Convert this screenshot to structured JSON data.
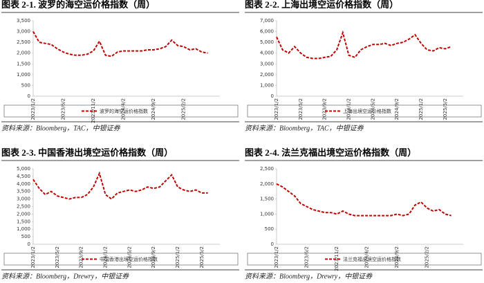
{
  "chart_data": [
    {
      "type": "line",
      "title": "图表 2-1. 波罗的海空运价格指数（周）",
      "source": "资料来源：Bloomberg，TAC，中银证券",
      "categories": [
        "2023/1/2",
        null,
        null,
        null,
        null,
        "2023/6/2",
        null,
        null,
        null,
        null,
        "2023/11/2",
        null,
        null,
        null,
        null,
        "2024/4/2",
        null,
        null,
        null,
        null,
        "2024/9/2",
        null,
        null,
        null,
        null,
        "2025/2/2",
        null,
        null,
        null,
        null
      ],
      "series": [
        {
          "name": "波罗的海空运价格指数",
          "color": "#c00000",
          "values": [
            3000,
            2500,
            2450,
            2400,
            2200,
            2050,
            1950,
            1900,
            1900,
            1950,
            2100,
            2550,
            1900,
            1850,
            2050,
            2100,
            2100,
            2100,
            2100,
            2150,
            2150,
            2200,
            2300,
            2600,
            2350,
            2300,
            2150,
            2200,
            2050,
            2000
          ]
        }
      ],
      "ylim": [
        0,
        3500
      ],
      "yticks": [
        0,
        500,
        {
          "value": 1000,
          "label": "1,000"
        },
        {
          "value": 1500,
          "label": "1,500"
        },
        {
          "value": 2000,
          "label": "2,000"
        },
        {
          "value": 2500,
          "label": "2,500"
        },
        {
          "value": 3000,
          "label": "3,000"
        },
        {
          "value": 3500,
          "label": "3,500"
        }
      ]
    },
    {
      "type": "line",
      "title": "图表 2-2. 上海出境空运价格指数（周）",
      "source": "资料来源：Bloomberg，TAC，中银证券",
      "categories": [
        "2023/1/2",
        null,
        null,
        null,
        "2023/5/2",
        null,
        null,
        null,
        "2023/9/2",
        null,
        null,
        null,
        "2024/1/2",
        null,
        null,
        null,
        "2024/5/2",
        null,
        null,
        null,
        "2024/9/2",
        null,
        null,
        null,
        "2025/1/2",
        null,
        null,
        null,
        "2025/5/2",
        null
      ],
      "series": [
        {
          "name": "上海出境空运价格指数",
          "color": "#c00000",
          "values": [
            5500,
            4300,
            4000,
            4600,
            4000,
            3600,
            3500,
            3500,
            3600,
            3700,
            4300,
            5900,
            3800,
            3600,
            4300,
            4600,
            4800,
            4800,
            4900,
            4700,
            4900,
            5000,
            5300,
            5700,
            4900,
            4300,
            4200,
            4500,
            4400,
            4600
          ]
        }
      ],
      "ylim": [
        0,
        7000
      ],
      "yticks": [
        0,
        {
          "value": 1000,
          "label": "1,000"
        },
        {
          "value": 2000,
          "label": "2,000"
        },
        {
          "value": 3000,
          "label": "3,000"
        },
        {
          "value": 4000,
          "label": "4,000"
        },
        {
          "value": 5000,
          "label": "5,000"
        },
        {
          "value": 6000,
          "label": "6,000"
        },
        {
          "value": 7000,
          "label": "7,000"
        }
      ]
    },
    {
      "type": "line",
      "title": "图表 2-3. 中国香港出境空运价格指数（周）",
      "source": "资料来源：Bloomberg，Drewry，中银证券",
      "categories": [
        "2023/1/2",
        null,
        null,
        null,
        "2023/5/2",
        null,
        null,
        null,
        "2023/9/2",
        null,
        null,
        null,
        "2024/1/2",
        null,
        null,
        null,
        "2024/5/2",
        null,
        null,
        null,
        "2024/9/2",
        null,
        null,
        null,
        "2025/1/2",
        null,
        null,
        null,
        "2025/5/2",
        null
      ],
      "series": [
        {
          "name": "中国香港出境空运价格指数",
          "color": "#c00000",
          "values": [
            4300,
            3700,
            3300,
            3500,
            3200,
            3100,
            3000,
            3100,
            3100,
            3300,
            3800,
            4700,
            3300,
            3000,
            3400,
            3500,
            3600,
            3500,
            3600,
            3800,
            3700,
            3800,
            4200,
            4600,
            3800,
            3600,
            3500,
            3600,
            3400,
            3400
          ]
        }
      ],
      "ylim": [
        0,
        5000
      ],
      "yticks": [
        0,
        500,
        {
          "value": 1000,
          "label": "1,000"
        },
        {
          "value": 1500,
          "label": "1,500"
        },
        {
          "value": 2000,
          "label": "2,000"
        },
        {
          "value": 2500,
          "label": "2,500"
        },
        {
          "value": 3000,
          "label": "3,000"
        },
        {
          "value": 3500,
          "label": "3,500"
        },
        {
          "value": 4000,
          "label": "4,000"
        },
        {
          "value": 4500,
          "label": "4,500"
        },
        {
          "value": 5000,
          "label": "5,000"
        }
      ]
    },
    {
      "type": "line",
      "title": "图表 2-4. 法兰克福出境空运价格指数（周）",
      "source": "资料来源：Bloomberg，Drewry，中银证券",
      "categories": [
        "2023/1/2",
        null,
        null,
        null,
        null,
        "2023/6/2",
        null,
        null,
        null,
        null,
        "2023/11/2",
        null,
        null,
        null,
        null,
        "2024/4/2",
        null,
        null,
        null,
        null,
        "2024/9/2",
        null,
        null,
        null,
        null,
        "2025/2/2",
        null,
        null,
        null,
        null
      ],
      "series": [
        {
          "name": "法兰克福出境空运价格指数",
          "color": "#c00000",
          "values": [
            2000,
            1900,
            1750,
            1600,
            1350,
            1250,
            1150,
            1100,
            1050,
            1050,
            1000,
            1100,
            1000,
            950,
            950,
            950,
            950,
            950,
            950,
            950,
            1000,
            950,
            1000,
            1300,
            1400,
            1200,
            1100,
            1150,
            1000,
            950
          ]
        }
      ],
      "ylim": [
        0,
        2500
      ],
      "yticks": [
        0,
        500,
        {
          "value": 1000,
          "label": "1,000"
        },
        {
          "value": 1500,
          "label": "1,500"
        },
        {
          "value": 2000,
          "label": "2,000"
        },
        {
          "value": 2500,
          "label": "2,500"
        }
      ]
    }
  ]
}
